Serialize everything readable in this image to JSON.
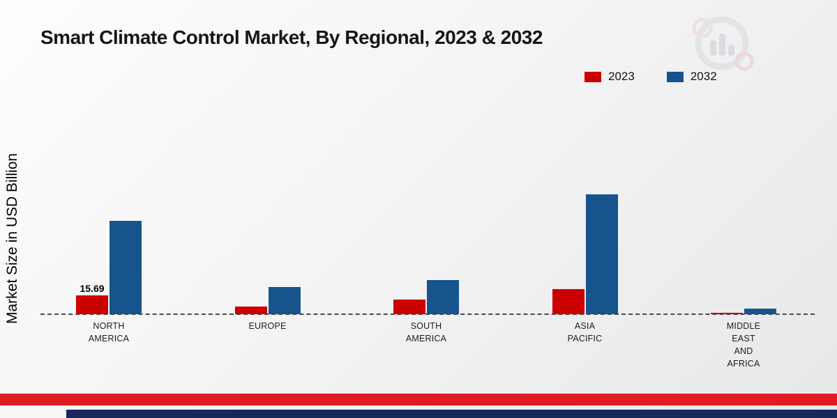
{
  "title": "Smart Climate Control Market, By Regional, 2023 & 2032",
  "ylabel": "Market Size in USD Billion",
  "legend": {
    "items": [
      {
        "label": "2023",
        "color": "#cc0001"
      },
      {
        "label": "2032",
        "color": "#17538d"
      }
    ]
  },
  "chart_data": {
    "type": "bar",
    "title": "Smart Climate Control Market, By Regional, 2023 & 2032",
    "xlabel": "",
    "ylabel": "Market Size in USD Billion",
    "categories": [
      "NORTH AMERICA",
      "EUROPE",
      "SOUTH AMERICA",
      "ASIA PACIFIC",
      "MIDDLE EAST AND AFRICA"
    ],
    "category_lines": [
      [
        "NORTH",
        "AMERICA"
      ],
      [
        "EUROPE"
      ],
      [
        "SOUTH",
        "AMERICA"
      ],
      [
        "ASIA",
        "PACIFIC"
      ],
      [
        "MIDDLE",
        "EAST",
        "AND",
        "AFRICA"
      ]
    ],
    "series": [
      {
        "name": "2023",
        "color": "#cc0001",
        "values": [
          15.69,
          6.5,
          12.0,
          21.0,
          1.2
        ]
      },
      {
        "name": "2032",
        "color": "#17538d",
        "values": [
          78.0,
          22.5,
          28.5,
          100.0,
          4.6
        ]
      }
    ],
    "annotations": [
      {
        "category_index": 0,
        "series_index": 0,
        "text": "15.69"
      }
    ],
    "ylim": [
      0,
      110
    ],
    "grid": false,
    "baseline_style": "dashed",
    "legend_position": "top-right"
  },
  "branding": {
    "logo_name": "market-research-future-logo",
    "footer_red_color": "#e01b22",
    "footer_navy_color": "#17295b"
  }
}
